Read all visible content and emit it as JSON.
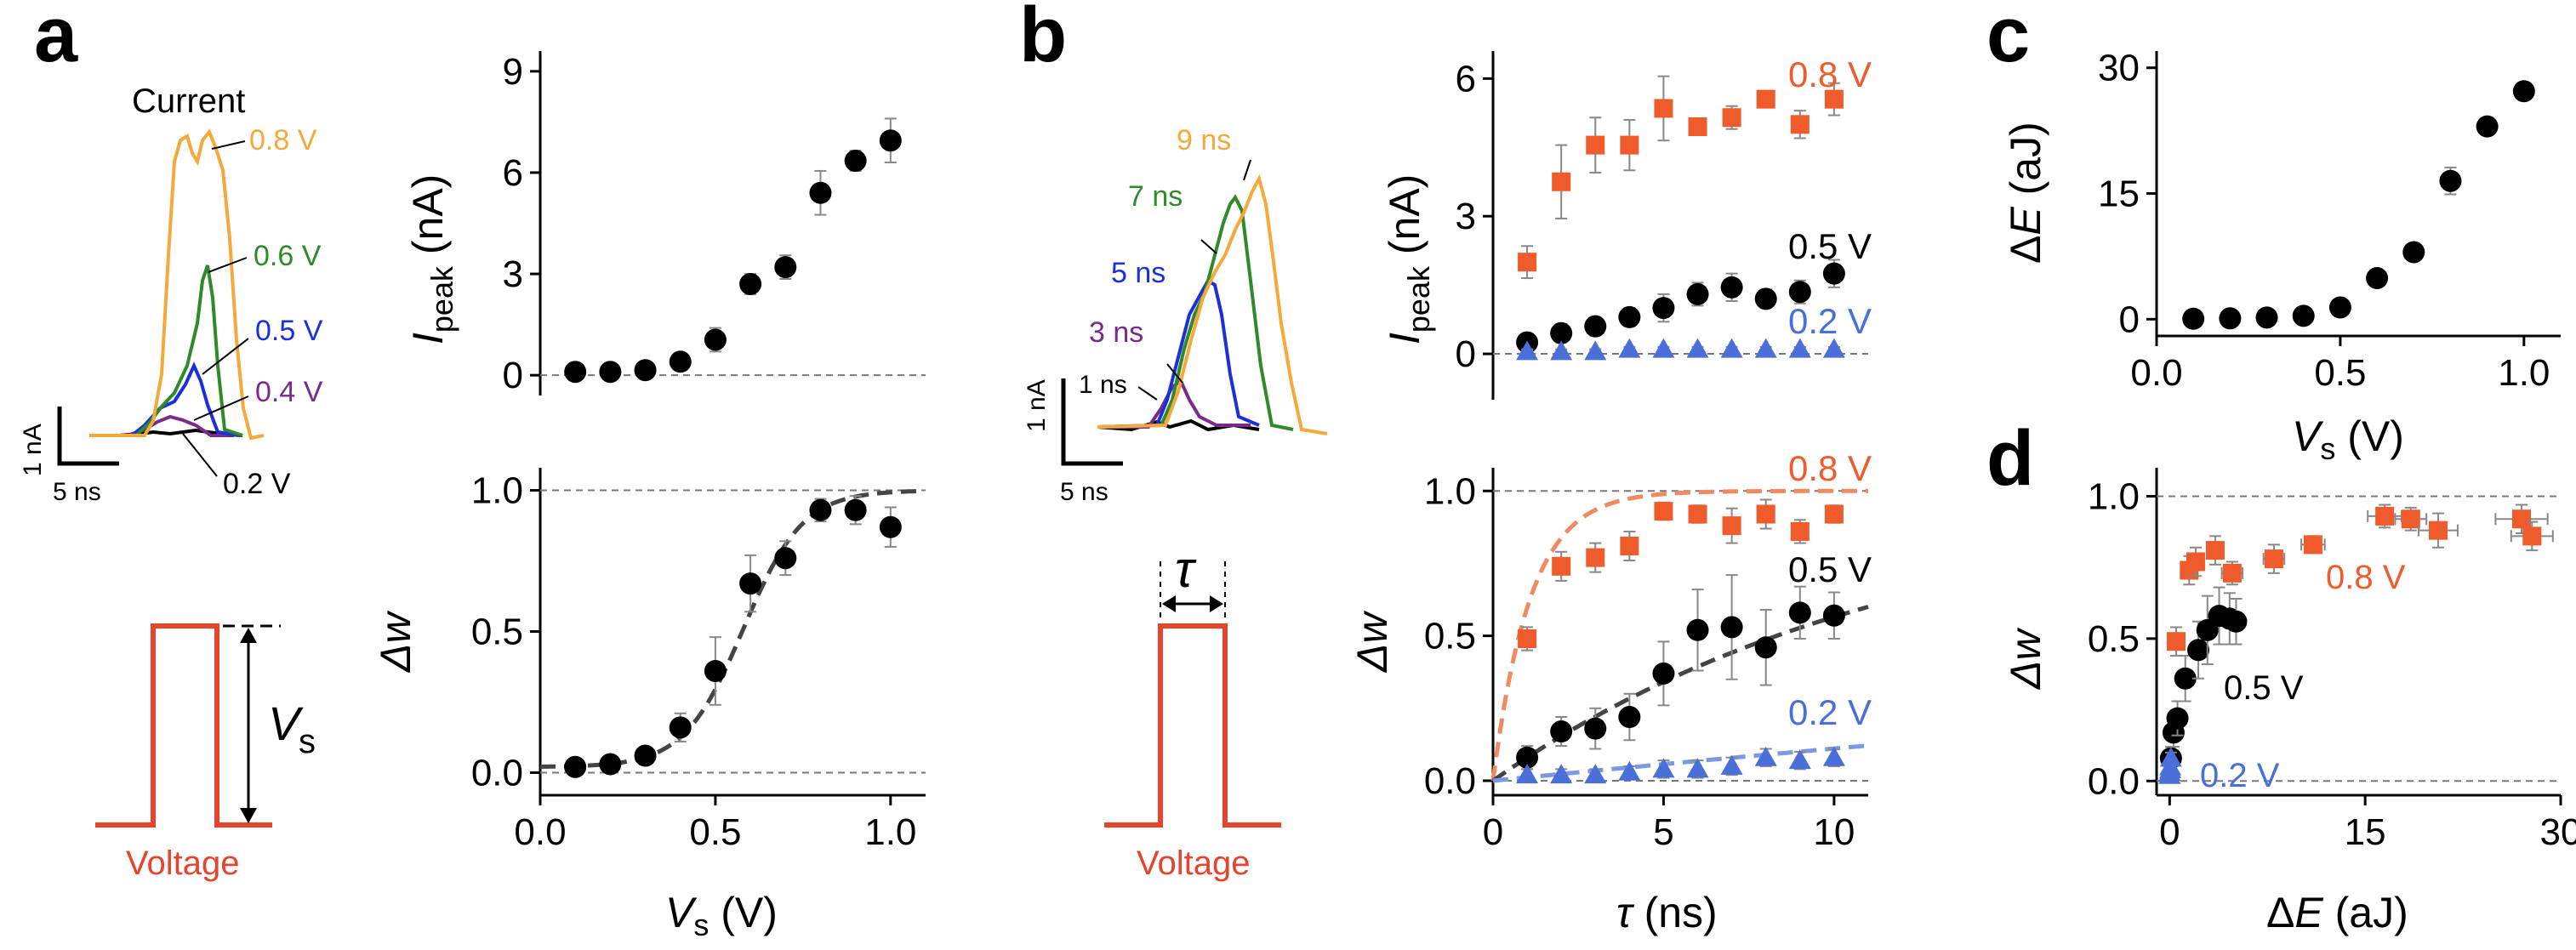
{
  "figure": {
    "panel_labels": [
      "a",
      "b",
      "c",
      "d"
    ],
    "colors": {
      "orange_trace": "#f4a93a",
      "green_trace": "#2f8a2a",
      "blue_trace": "#1c2fdc",
      "purple_trace": "#7a2a8a",
      "black": "#000000",
      "red_orange": "#ef5b2a",
      "light_blue": "#4a6fd8",
      "dash_gray": "#444444",
      "voltage_red": "#e8432c"
    }
  },
  "panel_a": {
    "traces_title": "Current",
    "trace_labels": [
      "0.8 V",
      "0.6 V",
      "0.5 V",
      "0.4 V",
      "0.2 V"
    ],
    "scale_y": "1 nA",
    "scale_x": "5 ns",
    "pulse_caption": "Voltage",
    "pulse_amp_symbol": "V",
    "pulse_amp_sub": "s"
  },
  "panel_b": {
    "trace_labels": [
      "9 ns",
      "7 ns",
      "5 ns",
      "3 ns",
      "1 ns"
    ],
    "scale_y": "1 nA",
    "scale_x": "5 ns",
    "pulse_caption": "Voltage",
    "pulse_width_symbol": "τ"
  },
  "chart_data": [
    {
      "id": "a_top",
      "type": "scatter",
      "xlabel": "V_s (V)",
      "ylabel": "I_peak (nA)",
      "xlim": [
        0,
        1.1
      ],
      "ylim": [
        -0.6,
        9.6
      ],
      "yticks": [
        "0",
        "3",
        "6",
        "9"
      ],
      "reference_lines": [
        0
      ],
      "series": [
        {
          "name": "I_peak",
          "x": [
            0.1,
            0.2,
            0.3,
            0.4,
            0.5,
            0.6,
            0.7,
            0.8,
            0.9,
            1.0
          ],
          "y": [
            0.1,
            0.1,
            0.15,
            0.4,
            1.05,
            2.7,
            3.2,
            5.4,
            6.35,
            6.95
          ],
          "err": [
            0.1,
            0.1,
            0.1,
            0.15,
            0.35,
            0.3,
            0.35,
            0.65,
            0.3,
            0.65
          ]
        }
      ]
    },
    {
      "id": "a_bottom",
      "type": "scatter",
      "xlabel": "V_s (V)",
      "ylabel": "Δw",
      "xlim": [
        0,
        1.1
      ],
      "ylim": [
        -0.08,
        1.08
      ],
      "xticks": [
        "0.0",
        "0.5",
        "1.0"
      ],
      "yticks": [
        "0.0",
        "0.5",
        "1.0"
      ],
      "reference_lines": [
        0,
        1
      ],
      "series": [
        {
          "name": "Δw",
          "x": [
            0.1,
            0.2,
            0.3,
            0.4,
            0.5,
            0.6,
            0.7,
            0.8,
            0.9,
            1.0
          ],
          "y": [
            0.02,
            0.03,
            0.06,
            0.16,
            0.36,
            0.67,
            0.76,
            0.93,
            0.93,
            0.87
          ],
          "err": [
            0.02,
            0.03,
            0.03,
            0.05,
            0.12,
            0.1,
            0.06,
            0.04,
            0.05,
            0.07
          ]
        }
      ],
      "fit": "sigmoid"
    },
    {
      "id": "b_top",
      "type": "scatter",
      "xlabel": "τ (ns)",
      "ylabel": "I_peak (nA)",
      "xlim": [
        0,
        11
      ],
      "ylim": [
        -1,
        6.6
      ],
      "yticks": [
        "0",
        "3",
        "6"
      ],
      "reference_lines": [
        0
      ],
      "series": [
        {
          "name": "0.8 V",
          "marker": "square",
          "x": [
            1,
            2,
            3,
            4,
            5,
            6,
            7,
            8,
            9,
            10
          ],
          "y": [
            2.0,
            3.75,
            4.55,
            4.55,
            5.35,
            4.95,
            5.15,
            5.55,
            5.0,
            5.55
          ],
          "err": [
            0.35,
            0.8,
            0.6,
            0.55,
            0.7,
            0.15,
            0.25,
            0.15,
            0.3,
            0.35
          ]
        },
        {
          "name": "0.5 V",
          "marker": "circle",
          "x": [
            1,
            2,
            3,
            4,
            5,
            6,
            7,
            8,
            9,
            10
          ],
          "y": [
            0.25,
            0.45,
            0.6,
            0.8,
            1.0,
            1.3,
            1.45,
            1.2,
            1.35,
            1.75
          ],
          "err": [
            0.15,
            0.2,
            0.2,
            0.2,
            0.3,
            0.25,
            0.3,
            0.2,
            0.25,
            0.3
          ]
        },
        {
          "name": "0.2 V",
          "marker": "triangle",
          "x": [
            1,
            2,
            3,
            4,
            5,
            6,
            7,
            8,
            9,
            10
          ],
          "y": [
            0.05,
            0.05,
            0.05,
            0.1,
            0.1,
            0.1,
            0.1,
            0.1,
            0.1,
            0.1
          ],
          "err": [
            0.05,
            0.05,
            0.05,
            0.05,
            0.05,
            0.05,
            0.05,
            0.05,
            0.05,
            0.05
          ]
        }
      ]
    },
    {
      "id": "b_bottom",
      "type": "scatter",
      "xlabel": "τ (ns)",
      "ylabel": "Δw",
      "xlim": [
        0,
        11
      ],
      "ylim": [
        -0.05,
        1.08
      ],
      "xticks": [
        "0",
        "5",
        "10"
      ],
      "yticks": [
        "0.0",
        "0.5",
        "1.0"
      ],
      "reference_lines": [
        0,
        1
      ],
      "series": [
        {
          "name": "0.8 V",
          "marker": "square",
          "x": [
            1,
            2,
            3,
            4,
            5,
            6,
            7,
            8,
            9,
            10
          ],
          "y": [
            0.49,
            0.74,
            0.77,
            0.81,
            0.93,
            0.92,
            0.88,
            0.92,
            0.86,
            0.92
          ],
          "err": [
            0.04,
            0.05,
            0.05,
            0.05,
            0.03,
            0.03,
            0.06,
            0.05,
            0.04,
            0.03
          ]
        },
        {
          "name": "0.5 V",
          "marker": "circle",
          "x": [
            1,
            2,
            3,
            4,
            5,
            6,
            7,
            8,
            9,
            10
          ],
          "y": [
            0.08,
            0.17,
            0.18,
            0.22,
            0.37,
            0.52,
            0.53,
            0.46,
            0.58,
            0.57
          ],
          "err": [
            0.04,
            0.05,
            0.07,
            0.08,
            0.11,
            0.14,
            0.18,
            0.13,
            0.09,
            0.08
          ]
        },
        {
          "name": "0.2 V",
          "marker": "triangle",
          "x": [
            1,
            2,
            3,
            4,
            5,
            6,
            7,
            8,
            9,
            10
          ],
          "y": [
            0.02,
            0.02,
            0.02,
            0.03,
            0.04,
            0.04,
            0.05,
            0.08,
            0.07,
            0.08
          ],
          "err": [
            0.02,
            0.02,
            0.02,
            0.02,
            0.03,
            0.03,
            0.03,
            0.03,
            0.03,
            0.03
          ]
        }
      ],
      "fit": "exponential"
    },
    {
      "id": "c",
      "type": "scatter",
      "xlabel": "V_s (V)",
      "ylabel": "ΔE (aJ)",
      "xlim": [
        0,
        1.1
      ],
      "ylim": [
        -2,
        32
      ],
      "xticks": [
        "0.0",
        "0.5",
        "1.0"
      ],
      "yticks": [
        "0",
        "15",
        "30"
      ],
      "series": [
        {
          "name": "ΔE",
          "x": [
            0.1,
            0.2,
            0.3,
            0.4,
            0.5,
            0.6,
            0.7,
            0.8,
            0.9,
            1.0
          ],
          "y": [
            0.05,
            0.1,
            0.2,
            0.4,
            1.4,
            4.9,
            8.0,
            16.5,
            23.0,
            27.2
          ],
          "err": [
            0.05,
            0.05,
            0.05,
            0.1,
            0.3,
            0.5,
            0.8,
            1.6,
            0.9,
            1.0
          ]
        }
      ]
    },
    {
      "id": "d",
      "type": "scatter",
      "xlabel": "ΔE (aJ)",
      "ylabel": "Δw",
      "xlim": [
        -1,
        30
      ],
      "ylim": [
        -0.05,
        1.1
      ],
      "xticks": [
        "0",
        "15",
        "30"
      ],
      "yticks": [
        "0.0",
        "0.5",
        "1.0"
      ],
      "reference_lines": [
        0,
        1
      ],
      "series": [
        {
          "name": "0.8 V",
          "marker": "square",
          "x": [
            0.5,
            1.5,
            2.0,
            3.5,
            4.8,
            8.0,
            11.0,
            16.5,
            18.5,
            20.6,
            27.0,
            27.8
          ],
          "y": [
            0.49,
            0.74,
            0.77,
            0.81,
            0.73,
            0.78,
            0.83,
            0.93,
            0.92,
            0.88,
            0.92,
            0.86
          ],
          "xerr": [
            0.2,
            0.5,
            0.5,
            0.6,
            0.8,
            0.8,
            0.9,
            1.3,
            1.2,
            1.5,
            2.0,
            1.6
          ],
          "err": [
            0.05,
            0.05,
            0.05,
            0.05,
            0.04,
            0.05,
            0.03,
            0.04,
            0.04,
            0.06,
            0.05,
            0.05
          ]
        },
        {
          "name": "0.5 V",
          "marker": "circle",
          "x": [
            0.1,
            0.3,
            0.6,
            1.2,
            2.2,
            2.9,
            3.8,
            4.6,
            5.1
          ],
          "y": [
            0.08,
            0.17,
            0.22,
            0.36,
            0.46,
            0.53,
            0.58,
            0.57,
            0.56
          ],
          "err": [
            0.04,
            0.05,
            0.06,
            0.08,
            0.1,
            0.12,
            0.1,
            0.09,
            0.08
          ]
        },
        {
          "name": "0.2 V",
          "marker": "triangle",
          "x": [
            0.0,
            0.0,
            0.0,
            0.05,
            0.05,
            0.1
          ],
          "y": [
            0.02,
            0.02,
            0.03,
            0.04,
            0.05,
            0.08
          ],
          "err": [
            0.02,
            0.02,
            0.02,
            0.02,
            0.02,
            0.02
          ]
        }
      ]
    }
  ]
}
